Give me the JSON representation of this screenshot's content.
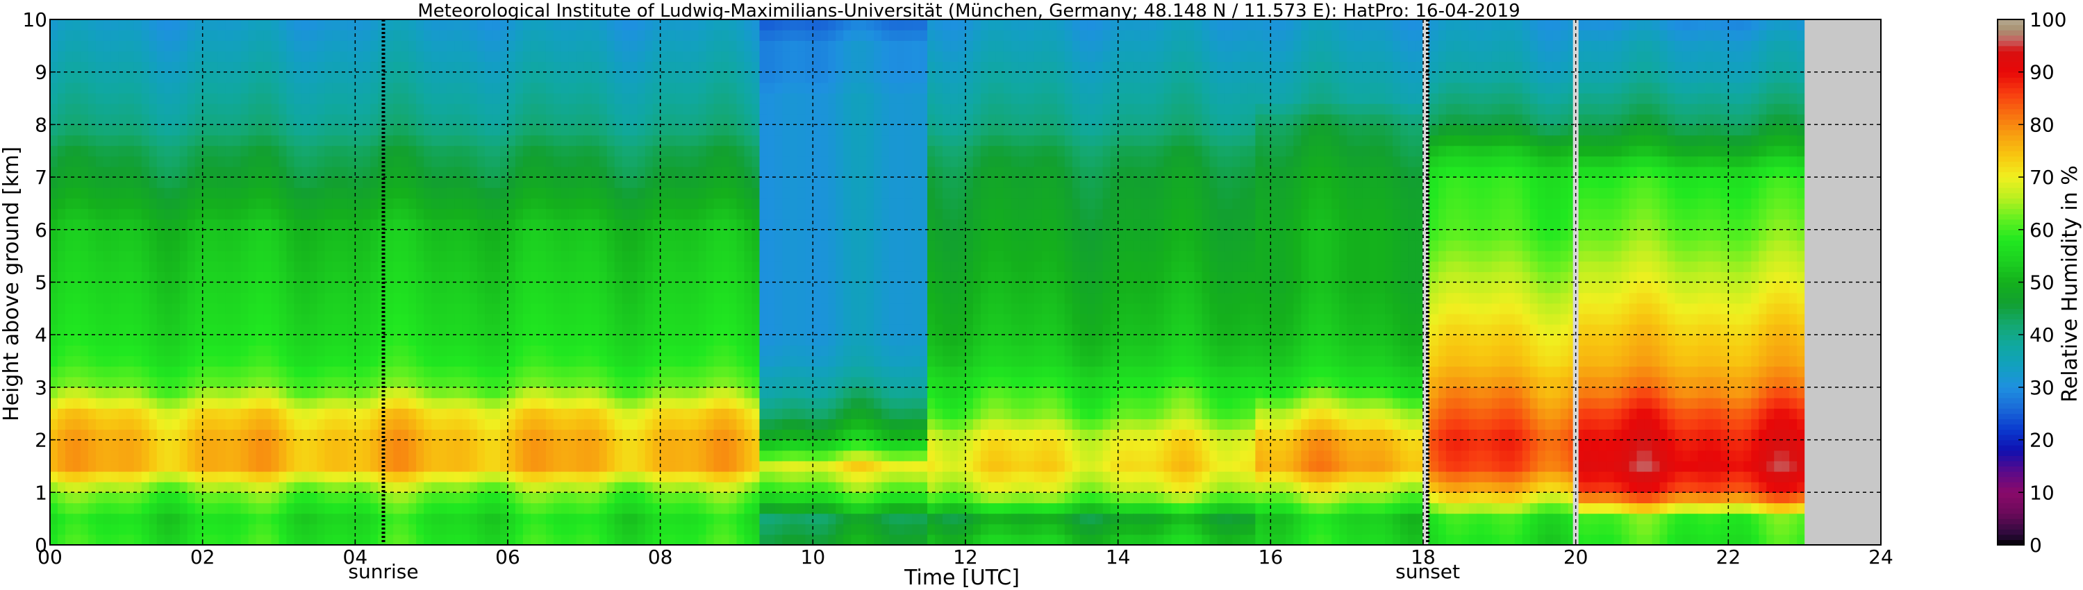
{
  "chart_data": {
    "type": "heatmap",
    "title": "Meteorological Institute of Ludwig-Maximilians-Universität (München, Germany; 48.148 N / 11.573 E):    HatPro: 16-04-2019",
    "xlabel": "Time [UTC]",
    "ylabel": "Height above ground [km]",
    "xlim": [
      0,
      24
    ],
    "ylim": [
      0,
      10
    ],
    "x_ticks": [
      "00",
      "02",
      "04",
      "06",
      "08",
      "10",
      "12",
      "14",
      "16",
      "18",
      "20",
      "22",
      "24"
    ],
    "y_ticks": [
      "0",
      "1",
      "2",
      "3",
      "4",
      "5",
      "6",
      "7",
      "8",
      "9",
      "10"
    ],
    "grid": true,
    "data_end_hour": 23.0,
    "no_data_color": "#c8c8c8",
    "annotations": [
      {
        "label": "sunrise",
        "x": 4.37
      },
      {
        "label": "sunset",
        "x": 18.06
      }
    ],
    "gap_lines": [
      18.03,
      20.0
    ],
    "colorbar": {
      "label": "Relative Humidity in %",
      "ticks": [
        "0",
        "10",
        "20",
        "30",
        "40",
        "50",
        "60",
        "70",
        "80",
        "90",
        "100"
      ],
      "range": [
        0,
        100
      ],
      "stops": [
        [
          0,
          "#000000"
        ],
        [
          2,
          "#2a0a3a"
        ],
        [
          6,
          "#6a0a5a"
        ],
        [
          10,
          "#8a0a6a"
        ],
        [
          14,
          "#5a0a8a"
        ],
        [
          18,
          "#1010b0"
        ],
        [
          22,
          "#0a3acf"
        ],
        [
          26,
          "#1a6ad8"
        ],
        [
          30,
          "#1e90e0"
        ],
        [
          34,
          "#12a0c0"
        ],
        [
          38,
          "#10a8a0"
        ],
        [
          42,
          "#14a870"
        ],
        [
          46,
          "#12a030"
        ],
        [
          50,
          "#14b01c"
        ],
        [
          54,
          "#1cd020"
        ],
        [
          58,
          "#20e820"
        ],
        [
          62,
          "#60f020"
        ],
        [
          66,
          "#b8f020"
        ],
        [
          70,
          "#f0f020"
        ],
        [
          74,
          "#f8c810"
        ],
        [
          78,
          "#f8a010"
        ],
        [
          82,
          "#f87010"
        ],
        [
          86,
          "#f83c10"
        ],
        [
          90,
          "#e80808"
        ],
        [
          94,
          "#d81010"
        ],
        [
          96,
          "#c86060"
        ],
        [
          98,
          "#a89070"
        ],
        [
          100,
          "#b4a890"
        ]
      ]
    },
    "humidity_profile_model": {
      "description_rows_km": [
        0,
        0.5,
        1,
        1.5,
        2,
        2.5,
        3,
        3.5,
        4,
        5,
        6,
        7,
        7.5,
        8,
        8.5,
        9,
        9.5,
        10
      ],
      "segments": [
        {
          "from": 0.0,
          "to": 9.3,
          "rh": [
            58,
            56,
            62,
            76,
            76,
            72,
            62,
            58,
            56,
            54,
            52,
            46,
            44,
            40,
            38,
            36,
            34,
            32
          ]
        },
        {
          "from": 9.3,
          "to": 11.5,
          "rh": [
            48,
            44,
            60,
            70,
            52,
            44,
            38,
            34,
            32,
            32,
            32,
            32,
            32,
            32,
            32,
            30,
            30,
            26
          ]
        },
        {
          "from": 11.5,
          "to": 15.8,
          "rh": [
            54,
            48,
            66,
            72,
            70,
            62,
            58,
            54,
            52,
            50,
            48,
            46,
            44,
            40,
            38,
            36,
            34,
            32
          ]
        },
        {
          "from": 15.8,
          "to": 18.03,
          "rh": [
            56,
            54,
            66,
            78,
            76,
            68,
            58,
            54,
            52,
            50,
            50,
            48,
            46,
            44,
            38,
            36,
            34,
            32
          ]
        },
        {
          "from": 18.03,
          "to": 20.0,
          "rh": [
            56,
            58,
            74,
            84,
            86,
            82,
            78,
            74,
            72,
            66,
            60,
            58,
            52,
            44,
            40,
            36,
            34,
            32
          ]
        },
        {
          "from": 20.0,
          "to": 23.0,
          "rh": [
            58,
            60,
            86,
            92,
            90,
            86,
            80,
            76,
            74,
            68,
            62,
            58,
            50,
            44,
            40,
            36,
            34,
            30
          ]
        }
      ]
    }
  }
}
